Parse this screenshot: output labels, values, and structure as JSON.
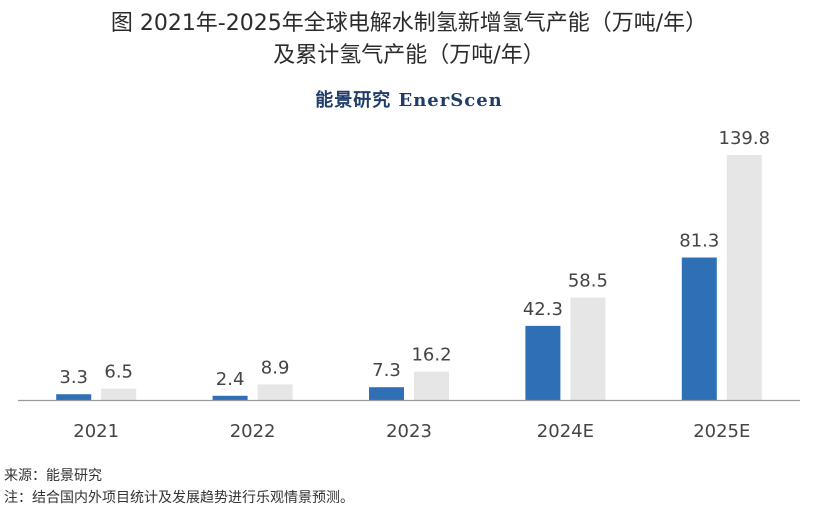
{
  "title_line1": "图  2021年-2025年全球电解水制氢新增氢气产能（万吨/年）",
  "title_line2": "及累计氢气产能（万吨/年）",
  "brand": "能景研究 EnerScen",
  "footer": {
    "source": "来源：能景研究",
    "note": "注：结合国内外项目统计及发展趋势进行乐观情景预测。"
  },
  "colors": {
    "new": "#2e6fb5",
    "cumulative": "#e6e6e6",
    "axis": "#999999"
  },
  "chart_data": {
    "type": "bar",
    "title": "图  2021年-2025年全球电解水制氢新增氢气产能（万吨/年）及累计氢气产能（万吨/年）",
    "categories": [
      "2021",
      "2022",
      "2023",
      "2024E",
      "2025E"
    ],
    "series": [
      {
        "values": [
          3.3,
          2.4,
          7.3,
          42.3,
          81.3
        ],
        "labels": [
          "3.3",
          "2.4",
          "7.3",
          "42.3",
          "81.3"
        ]
      },
      {
        "values": [
          6.5,
          8.9,
          16.2,
          58.5,
          139.8
        ],
        "labels": [
          "6.5",
          "8.9",
          "16.2",
          "58.5",
          "139.8"
        ]
      }
    ],
    "ylim": [
      0,
      140
    ],
    "grid": false,
    "legend": "none"
  }
}
